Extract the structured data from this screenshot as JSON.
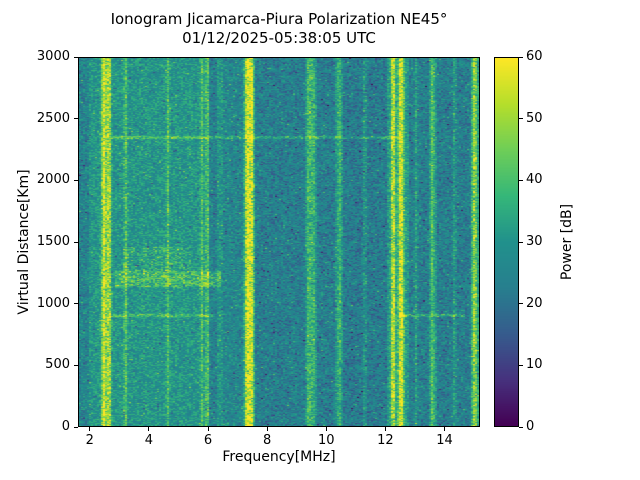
{
  "title": "Ionogram Jicamarca-Piura Polarization NE45°",
  "subtitle": "01/12/2025-05:38:05 UTC",
  "chart_data": {
    "type": "heatmap",
    "xlabel": "Frequency[MHz]",
    "ylabel": "Virtual Distance[Km]",
    "xlim": [
      1.6,
      15.2
    ],
    "ylim": [
      0,
      3000
    ],
    "x_ticks": [
      2,
      4,
      6,
      8,
      10,
      12,
      14
    ],
    "y_ticks": [
      0,
      500,
      1000,
      1500,
      2000,
      2500,
      3000
    ],
    "colorbar": {
      "label": "Power [dB]",
      "min": 0,
      "max": 60,
      "ticks": [
        0,
        10,
        20,
        30,
        40,
        50,
        60
      ],
      "colormap": "viridis",
      "low_color": "#440154",
      "mid_color": "#21918c",
      "high_color": "#fde725"
    },
    "background_power_db": {
      "mean": 30,
      "spread": 8
    },
    "features": {
      "bright_lines_mhz": [
        {
          "f": 2.45,
          "width": 0.06,
          "amp": 28
        },
        {
          "f": 2.62,
          "width": 0.05,
          "amp": 24
        },
        {
          "f": 3.18,
          "width": 0.04,
          "amp": 12
        },
        {
          "f": 4.62,
          "width": 0.04,
          "amp": 10
        },
        {
          "f": 5.78,
          "width": 0.04,
          "amp": 11
        },
        {
          "f": 5.96,
          "width": 0.04,
          "amp": 13
        },
        {
          "f": 7.33,
          "width": 0.06,
          "amp": 30
        },
        {
          "f": 7.47,
          "width": 0.05,
          "amp": 26
        },
        {
          "f": 9.42,
          "width": 0.04,
          "amp": 12
        },
        {
          "f": 9.56,
          "width": 0.04,
          "amp": 10
        },
        {
          "f": 10.45,
          "width": 0.04,
          "amp": 9
        },
        {
          "f": 11.32,
          "width": 0.04,
          "amp": 9
        },
        {
          "f": 12.28,
          "width": 0.05,
          "amp": 27
        },
        {
          "f": 12.55,
          "width": 0.07,
          "amp": 29
        },
        {
          "f": 13.06,
          "width": 0.04,
          "amp": 9
        },
        {
          "f": 13.62,
          "width": 0.04,
          "amp": 12
        },
        {
          "f": 14.37,
          "width": 0.04,
          "amp": 9
        },
        {
          "f": 15.05,
          "width": 0.06,
          "amp": 20
        }
      ],
      "dark_bands_mhz": [
        {
          "f0": 1.6,
          "f1": 1.95,
          "amp": 6
        },
        {
          "f0": 6.05,
          "f1": 6.3,
          "amp": 7
        },
        {
          "f0": 6.5,
          "f1": 7.15,
          "amp": 5
        },
        {
          "f0": 7.6,
          "f1": 9.25,
          "amp": 8
        },
        {
          "f0": 9.7,
          "f1": 10.3,
          "amp": 8
        },
        {
          "f0": 10.6,
          "f1": 12.1,
          "amp": 9
        },
        {
          "f0": 12.8,
          "f1": 13.5,
          "amp": 8
        },
        {
          "f0": 13.8,
          "f1": 14.95,
          "amp": 8
        }
      ],
      "horizontal_lines_km": [
        {
          "km": 2350,
          "amp": 11,
          "segments": [
            [
              2.7,
              12.6
            ]
          ]
        },
        {
          "km": 900,
          "amp": 11,
          "segments": [
            [
              2.7,
              6.2
            ],
            [
              12.5,
              14.7
            ]
          ]
        }
      ],
      "echo_regions": [
        {
          "f": [
            2.85,
            6.45
          ],
          "km": [
            1130,
            1265
          ],
          "amp": 13,
          "density": 0.95
        },
        {
          "f": [
            3.1,
            5.4
          ],
          "km": [
            1265,
            1460
          ],
          "amp": 9,
          "density": 0.5
        }
      ]
    }
  }
}
